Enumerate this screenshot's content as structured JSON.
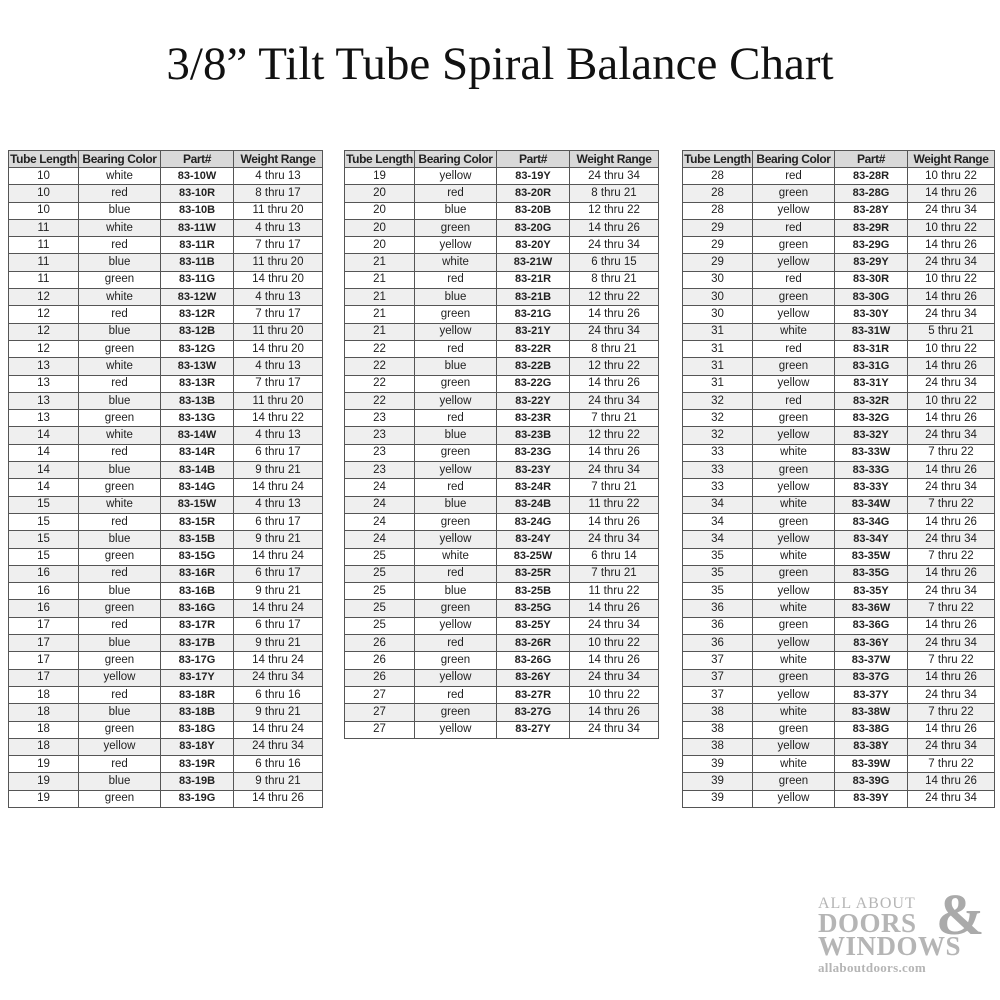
{
  "title": "3/8” Tilt Tube Spiral Balance Chart",
  "headers": [
    "Tube Length",
    "Bearing Color",
    "Part#",
    "Weight Range"
  ],
  "tables": [
    [
      [
        "10",
        "white",
        "83-10W",
        "4 thru 13"
      ],
      [
        "10",
        "red",
        "83-10R",
        "8 thru 17"
      ],
      [
        "10",
        "blue",
        "83-10B",
        "11 thru 20"
      ],
      [
        "11",
        "white",
        "83-11W",
        "4 thru 13"
      ],
      [
        "11",
        "red",
        "83-11R",
        "7 thru 17"
      ],
      [
        "11",
        "blue",
        "83-11B",
        "11 thru 20"
      ],
      [
        "11",
        "green",
        "83-11G",
        "14 thru 20"
      ],
      [
        "12",
        "white",
        "83-12W",
        "4 thru 13"
      ],
      [
        "12",
        "red",
        "83-12R",
        "7 thru 17"
      ],
      [
        "12",
        "blue",
        "83-12B",
        "11 thru 20"
      ],
      [
        "12",
        "green",
        "83-12G",
        "14 thru 20"
      ],
      [
        "13",
        "white",
        "83-13W",
        "4 thru 13"
      ],
      [
        "13",
        "red",
        "83-13R",
        "7 thru 17"
      ],
      [
        "13",
        "blue",
        "83-13B",
        "11 thru 20"
      ],
      [
        "13",
        "green",
        "83-13G",
        "14 thru 22"
      ],
      [
        "14",
        "white",
        "83-14W",
        "4 thru 13"
      ],
      [
        "14",
        "red",
        "83-14R",
        "6 thru 17"
      ],
      [
        "14",
        "blue",
        "83-14B",
        "9 thru 21"
      ],
      [
        "14",
        "green",
        "83-14G",
        "14 thru 24"
      ],
      [
        "15",
        "white",
        "83-15W",
        "4 thru 13"
      ],
      [
        "15",
        "red",
        "83-15R",
        "6 thru 17"
      ],
      [
        "15",
        "blue",
        "83-15B",
        "9 thru 21"
      ],
      [
        "15",
        "green",
        "83-15G",
        "14 thru 24"
      ],
      [
        "16",
        "red",
        "83-16R",
        "6 thru 17"
      ],
      [
        "16",
        "blue",
        "83-16B",
        "9 thru 21"
      ],
      [
        "16",
        "green",
        "83-16G",
        "14 thru 24"
      ],
      [
        "17",
        "red",
        "83-17R",
        "6 thru 17"
      ],
      [
        "17",
        "blue",
        "83-17B",
        "9 thru 21"
      ],
      [
        "17",
        "green",
        "83-17G",
        "14 thru 24"
      ],
      [
        "17",
        "yellow",
        "83-17Y",
        "24 thru 34"
      ],
      [
        "18",
        "red",
        "83-18R",
        "6 thru 16"
      ],
      [
        "18",
        "blue",
        "83-18B",
        "9 thru 21"
      ],
      [
        "18",
        "green",
        "83-18G",
        "14 thru 24"
      ],
      [
        "18",
        "yellow",
        "83-18Y",
        "24 thru 34"
      ],
      [
        "19",
        "red",
        "83-19R",
        "6 thru 16"
      ],
      [
        "19",
        "blue",
        "83-19B",
        "9 thru 21"
      ],
      [
        "19",
        "green",
        "83-19G",
        "14 thru 26"
      ]
    ],
    [
      [
        "19",
        "yellow",
        "83-19Y",
        "24 thru 34"
      ],
      [
        "20",
        "red",
        "83-20R",
        "8 thru 21"
      ],
      [
        "20",
        "blue",
        "83-20B",
        "12 thru 22"
      ],
      [
        "20",
        "green",
        "83-20G",
        "14 thru 26"
      ],
      [
        "20",
        "yellow",
        "83-20Y",
        "24 thru 34"
      ],
      [
        "21",
        "white",
        "83-21W",
        "6 thru 15"
      ],
      [
        "21",
        "red",
        "83-21R",
        "8 thru 21"
      ],
      [
        "21",
        "blue",
        "83-21B",
        "12 thru 22"
      ],
      [
        "21",
        "green",
        "83-21G",
        "14 thru 26"
      ],
      [
        "21",
        "yellow",
        "83-21Y",
        "24 thru 34"
      ],
      [
        "22",
        "red",
        "83-22R",
        "8 thru 21"
      ],
      [
        "22",
        "blue",
        "83-22B",
        "12 thru 22"
      ],
      [
        "22",
        "green",
        "83-22G",
        "14 thru 26"
      ],
      [
        "22",
        "yellow",
        "83-22Y",
        "24 thru 34"
      ],
      [
        "23",
        "red",
        "83-23R",
        "7 thru 21"
      ],
      [
        "23",
        "blue",
        "83-23B",
        "12 thru 22"
      ],
      [
        "23",
        "green",
        "83-23G",
        "14 thru 26"
      ],
      [
        "23",
        "yellow",
        "83-23Y",
        "24 thru 34"
      ],
      [
        "24",
        "red",
        "83-24R",
        "7 thru 21"
      ],
      [
        "24",
        "blue",
        "83-24B",
        "11 thru 22"
      ],
      [
        "24",
        "green",
        "83-24G",
        "14 thru 26"
      ],
      [
        "24",
        "yellow",
        "83-24Y",
        "24 thru 34"
      ],
      [
        "25",
        "white",
        "83-25W",
        "6 thru 14"
      ],
      [
        "25",
        "red",
        "83-25R",
        "7 thru 21"
      ],
      [
        "25",
        "blue",
        "83-25B",
        "11 thru 22"
      ],
      [
        "25",
        "green",
        "83-25G",
        "14 thru 26"
      ],
      [
        "25",
        "yellow",
        "83-25Y",
        "24 thru 34"
      ],
      [
        "26",
        "red",
        "83-26R",
        "10 thru 22"
      ],
      [
        "26",
        "green",
        "83-26G",
        "14 thru 26"
      ],
      [
        "26",
        "yellow",
        "83-26Y",
        "24 thru 34"
      ],
      [
        "27",
        "red",
        "83-27R",
        "10 thru 22"
      ],
      [
        "27",
        "green",
        "83-27G",
        "14 thru 26"
      ],
      [
        "27",
        "yellow",
        "83-27Y",
        "24 thru 34"
      ]
    ],
    [
      [
        "28",
        "red",
        "83-28R",
        "10 thru 22"
      ],
      [
        "28",
        "green",
        "83-28G",
        "14 thru 26"
      ],
      [
        "28",
        "yellow",
        "83-28Y",
        "24 thru 34"
      ],
      [
        "29",
        "red",
        "83-29R",
        "10 thru 22"
      ],
      [
        "29",
        "green",
        "83-29G",
        "14 thru 26"
      ],
      [
        "29",
        "yellow",
        "83-29Y",
        "24 thru 34"
      ],
      [
        "30",
        "red",
        "83-30R",
        "10 thru 22"
      ],
      [
        "30",
        "green",
        "83-30G",
        "14 thru 26"
      ],
      [
        "30",
        "yellow",
        "83-30Y",
        "24 thru 34"
      ],
      [
        "31",
        "white",
        "83-31W",
        "5 thru 21"
      ],
      [
        "31",
        "red",
        "83-31R",
        "10 thru 22"
      ],
      [
        "31",
        "green",
        "83-31G",
        "14 thru 26"
      ],
      [
        "31",
        "yellow",
        "83-31Y",
        "24 thru 34"
      ],
      [
        "32",
        "red",
        "83-32R",
        "10 thru 22"
      ],
      [
        "32",
        "green",
        "83-32G",
        "14 thru 26"
      ],
      [
        "32",
        "yellow",
        "83-32Y",
        "24 thru 34"
      ],
      [
        "33",
        "white",
        "83-33W",
        "7 thru 22"
      ],
      [
        "33",
        "green",
        "83-33G",
        "14 thru 26"
      ],
      [
        "33",
        "yellow",
        "83-33Y",
        "24 thru 34"
      ],
      [
        "34",
        "white",
        "83-34W",
        "7 thru 22"
      ],
      [
        "34",
        "green",
        "83-34G",
        "14 thru 26"
      ],
      [
        "34",
        "yellow",
        "83-34Y",
        "24 thru 34"
      ],
      [
        "35",
        "white",
        "83-35W",
        "7 thru 22"
      ],
      [
        "35",
        "green",
        "83-35G",
        "14 thru 26"
      ],
      [
        "35",
        "yellow",
        "83-35Y",
        "24 thru 34"
      ],
      [
        "36",
        "white",
        "83-36W",
        "7 thru 22"
      ],
      [
        "36",
        "green",
        "83-36G",
        "14 thru 26"
      ],
      [
        "36",
        "yellow",
        "83-36Y",
        "24 thru 34"
      ],
      [
        "37",
        "white",
        "83-37W",
        "7 thru 22"
      ],
      [
        "37",
        "green",
        "83-37G",
        "14 thru 26"
      ],
      [
        "37",
        "yellow",
        "83-37Y",
        "24 thru 34"
      ],
      [
        "38",
        "white",
        "83-38W",
        "7 thru 22"
      ],
      [
        "38",
        "green",
        "83-38G",
        "14 thru 26"
      ],
      [
        "38",
        "yellow",
        "83-38Y",
        "24 thru 34"
      ],
      [
        "39",
        "white",
        "83-39W",
        "7 thru 22"
      ],
      [
        "39",
        "green",
        "83-39G",
        "14 thru 26"
      ],
      [
        "39",
        "yellow",
        "83-39Y",
        "24 thru 34"
      ]
    ]
  ],
  "logo": {
    "line1": "ALL ABOUT",
    "line2": "DOORS",
    "ampersand": "&",
    "line3": "WINDOWS",
    "url": "allaboutdoors.com",
    "color": "#b5b5b5"
  },
  "colors": {
    "header_bg": "#d9d9d9",
    "alt_row_bg": "#efefef",
    "border": "#555555"
  }
}
